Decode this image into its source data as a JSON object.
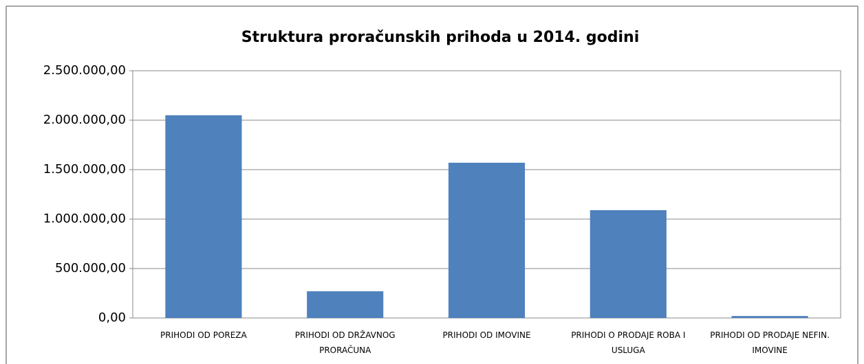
{
  "chart_data": {
    "type": "bar",
    "title": "Struktura proračunskih prihoda u 2014. godini",
    "categories": [
      "PRIHODI OD POREZA",
      "PRIHODI OD DRŽAVNOG PRORAČUNA",
      "PRIHODI OD IMOVINE",
      "PRIHODI O PRODAJE ROBA I USLUGA",
      "PRIHODI OD PRODAJE NEFIN. IMOVINE"
    ],
    "values": [
      2050000,
      270000,
      1570000,
      1090000,
      20000
    ],
    "color": "#4f81bd",
    "ylim": [
      0,
      2500000
    ],
    "yticks": [
      {
        "value": 0,
        "label": "0,00"
      },
      {
        "value": 500000,
        "label": "500.000,00"
      },
      {
        "value": 1000000,
        "label": "1.000.000,00"
      },
      {
        "value": 1500000,
        "label": "1.500.000,00"
      },
      {
        "value": 2000000,
        "label": "2.000.000,00"
      },
      {
        "value": 2500000,
        "label": "2.500.000,00"
      }
    ],
    "grid": true
  }
}
